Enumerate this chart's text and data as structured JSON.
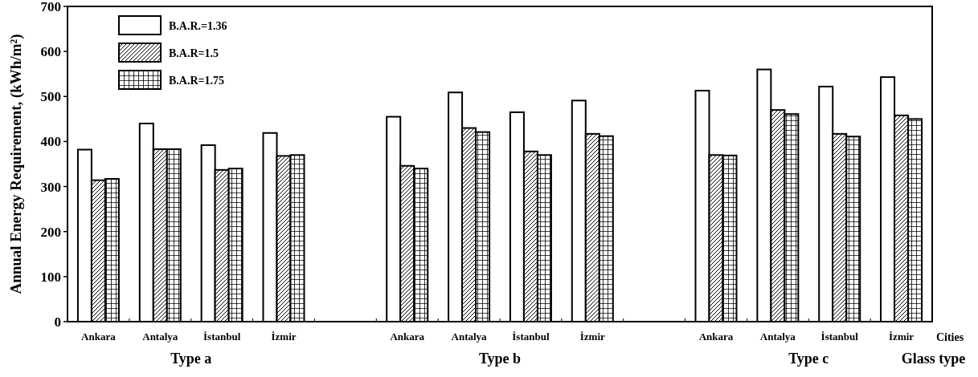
{
  "chart_data": {
    "type": "bar",
    "ylabel": "Annual Energy Requirement, (kWh/m²)",
    "xlabel": "Glass type",
    "categories": [
      "Ankara",
      "Antalya",
      "İstanbul",
      "İzmir",
      null,
      "Ankara",
      "Antalya",
      "İstanbul",
      "İzmir",
      null,
      "Ankara",
      "Antalya",
      "İstanbul",
      "İzmir"
    ],
    "series": [
      {
        "name": "B.A.R.=1.36",
        "color": "#ffffff",
        "values": [
          382,
          440,
          392,
          419,
          null,
          455,
          509,
          465,
          491,
          null,
          513,
          560,
          522,
          543
        ]
      },
      {
        "name": "B.A.R=1.5",
        "color": "#ffffff",
        "values": [
          314,
          383,
          337,
          368,
          null,
          346,
          430,
          378,
          417,
          null,
          370,
          470,
          417,
          458
        ]
      },
      {
        "name": "B.A.R=1.75",
        "color": "#ffffff",
        "values": [
          317,
          383,
          340,
          370,
          null,
          340,
          421,
          370,
          412,
          null,
          369,
          461,
          411,
          450
        ]
      }
    ],
    "annotations": [
      "Type a",
      "Type b",
      "Type c",
      "Cities"
    ],
    "ylim": [
      0,
      700
    ],
    "yticks": [
      0,
      100,
      200,
      300,
      400,
      500,
      600,
      700
    ],
    "legend": "top left",
    "grid": false
  }
}
